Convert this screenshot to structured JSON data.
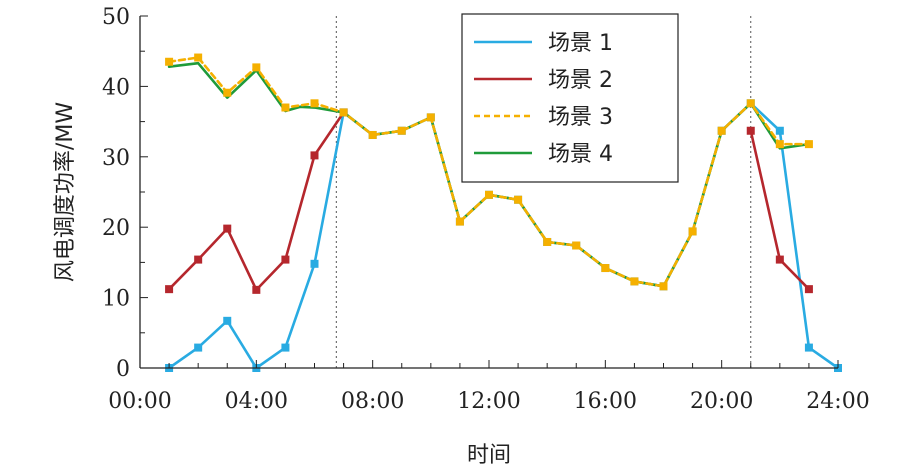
{
  "chart_data": {
    "type": "line",
    "xlabel": "时间",
    "ylabel": "风电调度功率/MW",
    "xlim": [
      0,
      24
    ],
    "ylim": [
      0,
      50
    ],
    "x_ticks": [
      "00:00",
      "04:00",
      "08:00",
      "12:00",
      "16:00",
      "20:00",
      "24:00"
    ],
    "x_tick_values": [
      0,
      4,
      8,
      12,
      16,
      20,
      24
    ],
    "y_ticks": [
      0,
      10,
      20,
      30,
      40,
      50
    ],
    "grid": false,
    "legend_position": "top-right",
    "vertical_reference_lines": [
      6.75,
      21
    ],
    "x": [
      1,
      2,
      3,
      4,
      5,
      6,
      7,
      8,
      9,
      10,
      11,
      12,
      13,
      14,
      15,
      16,
      17,
      18,
      19,
      20,
      21,
      22,
      23,
      24
    ],
    "series": [
      {
        "name": "场景 1",
        "color": "#29abe2",
        "dash": "solid",
        "marker": "square",
        "x": [
          1,
          2,
          3,
          4,
          5,
          6,
          7
        ],
        "values": [
          0,
          2.9,
          6.7,
          0,
          2.9,
          14.8,
          36.3
        ]
      },
      {
        "name": "场景 1",
        "color": "#29abe2",
        "dash": "solid",
        "marker": "square",
        "legend": false,
        "x": [
          7,
          8,
          9,
          10,
          11,
          12,
          13,
          14,
          15,
          16,
          17,
          18,
          19,
          20,
          21,
          22,
          23,
          24
        ],
        "values": [
          36.3,
          33.1,
          33.7,
          35.6,
          20.8,
          24.6,
          23.9,
          17.9,
          17.4,
          14.2,
          12.3,
          11.6,
          19.4,
          33.7,
          37.6,
          33.7,
          2.9,
          0
        ]
      },
      {
        "name": "场景 2",
        "color": "#b5272d",
        "dash": "solid",
        "marker": "square",
        "x": [
          1,
          2,
          3,
          4,
          5,
          6,
          7
        ],
        "values": [
          11.2,
          15.4,
          19.8,
          11.1,
          15.4,
          30.2,
          36.3
        ]
      },
      {
        "name": "场景 2",
        "color": "#b5272d",
        "dash": "solid",
        "marker": "square",
        "legend": false,
        "x": [
          21,
          22,
          23
        ],
        "values": [
          33.7,
          15.4,
          11.2
        ]
      },
      {
        "name": "场景 4",
        "color": "#1f9b3a",
        "dash": "solid",
        "marker": "none",
        "x": [
          1,
          2,
          3,
          4,
          5,
          5.5,
          6,
          7,
          8,
          9,
          10,
          11,
          12,
          13,
          14,
          15,
          16,
          17,
          18,
          19,
          20,
          21,
          22,
          23
        ],
        "values": [
          42.8,
          43.3,
          38.4,
          42.3,
          36.5,
          37.1,
          37.0,
          36.3,
          33.1,
          33.7,
          35.6,
          20.8,
          24.6,
          23.9,
          17.9,
          17.4,
          14.2,
          12.3,
          11.6,
          19.4,
          33.7,
          37.6,
          31.2,
          31.8
        ]
      },
      {
        "name": "场景 3",
        "color": "#f5b000",
        "dash": "dashed",
        "marker": "square",
        "x": [
          1,
          2,
          3,
          4,
          5,
          6,
          7,
          8,
          9,
          10,
          11,
          12,
          13,
          14,
          15,
          16,
          17,
          18,
          19,
          20,
          21,
          22,
          23
        ],
        "values": [
          43.5,
          44.1,
          39.1,
          42.7,
          37.0,
          37.6,
          36.3,
          33.1,
          33.7,
          35.6,
          20.8,
          24.6,
          23.9,
          17.9,
          17.4,
          14.2,
          12.3,
          11.6,
          19.4,
          33.7,
          37.6,
          31.8,
          31.8
        ]
      }
    ],
    "legend": [
      {
        "name": "场景 1",
        "color": "#29abe2",
        "dash": "solid"
      },
      {
        "name": "场景 2",
        "color": "#b5272d",
        "dash": "solid"
      },
      {
        "name": "场景 3",
        "color": "#f5b000",
        "dash": "dashed"
      },
      {
        "name": "场景 4",
        "color": "#1f9b3a",
        "dash": "solid"
      }
    ]
  }
}
